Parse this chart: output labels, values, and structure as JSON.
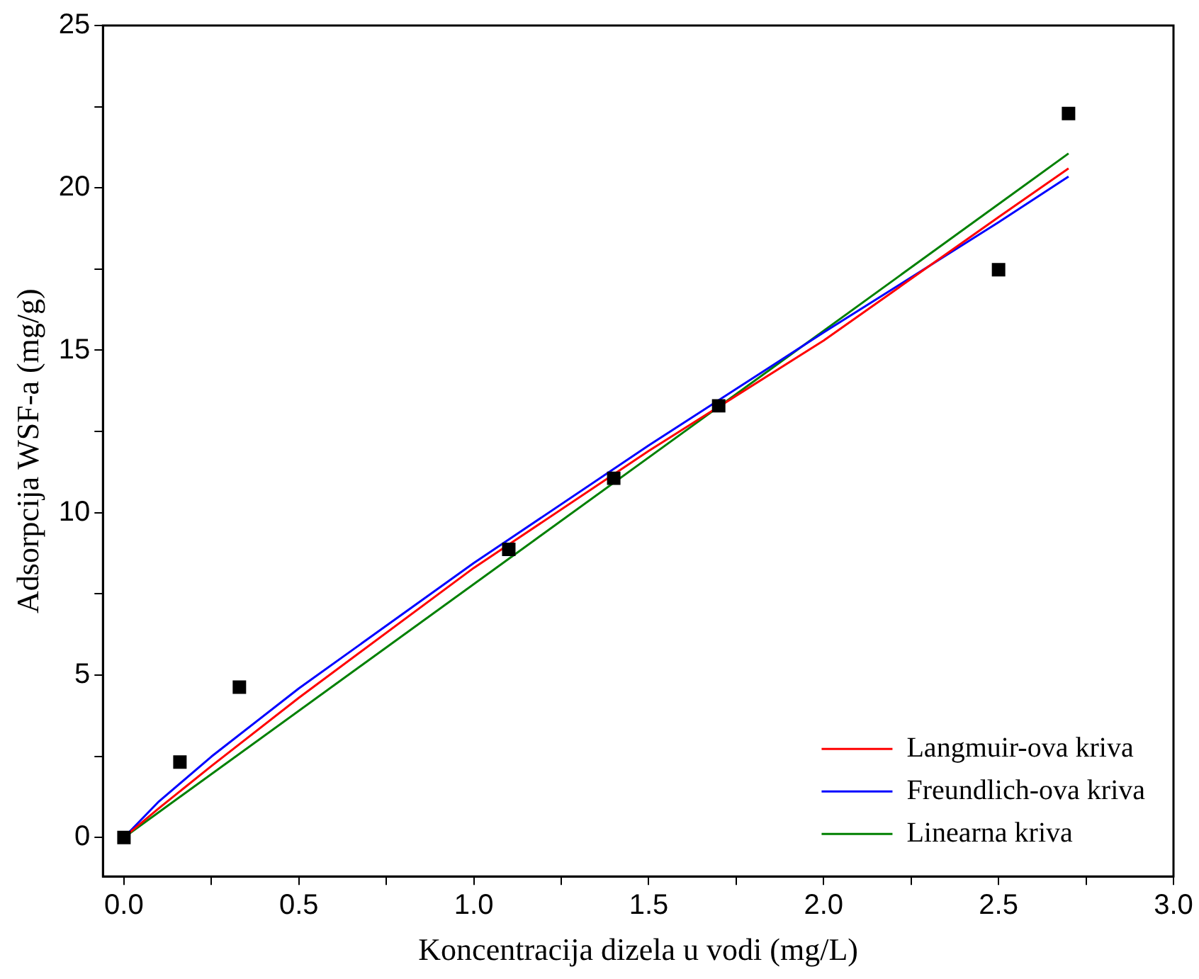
{
  "chart_data": {
    "type": "line",
    "xlabel": "Koncentracija dizela u vodi (mg/L)",
    "ylabel": "Adsorpcija WSF-a (mg/g)",
    "xlim": [
      -0.06,
      3.0
    ],
    "ylim": [
      -1.2,
      25
    ],
    "xticks": [
      {
        "value": 0,
        "label": "0.0"
      },
      {
        "value": 0.25,
        "label": null
      },
      {
        "value": 0.5,
        "label": "0.5"
      },
      {
        "value": 0.75,
        "label": null
      },
      {
        "value": 1,
        "label": "1.0"
      },
      {
        "value": 1.25,
        "label": null
      },
      {
        "value": 1.5,
        "label": "1.5"
      },
      {
        "value": 1.75,
        "label": null
      },
      {
        "value": 2,
        "label": "2.0"
      },
      {
        "value": 2.25,
        "label": null
      },
      {
        "value": 2.5,
        "label": "2.5"
      },
      {
        "value": 2.75,
        "label": null
      },
      {
        "value": 3,
        "label": "3.0"
      }
    ],
    "yticks": [
      0,
      {
        "value": 2.5,
        "label": null
      },
      5,
      {
        "value": 7.5,
        "label": null
      },
      10,
      {
        "value": 12.5,
        "label": null
      },
      15,
      {
        "value": 17.5,
        "label": null
      },
      20,
      {
        "value": 22.5,
        "label": null
      },
      25
    ],
    "grid": false,
    "legend": "bottom right",
    "series": [
      {
        "type": "scatter",
        "marker": "square",
        "color": "#000000",
        "x": [
          0,
          0.16,
          0.33,
          1.1,
          1.4,
          1.7,
          2.5,
          2.7
        ],
        "values": [
          0,
          2.32,
          4.63,
          8.87,
          11.06,
          13.29,
          17.48,
          22.29
        ]
      },
      {
        "name": "Langmuir-ova kriva",
        "color": "#ff0000",
        "x": [
          0,
          0.1,
          0.25,
          0.5,
          1,
          1.5,
          2,
          2.5,
          2.7
        ],
        "values": [
          0,
          0.9,
          2.2,
          4.3,
          8.3,
          11.9,
          15.3,
          19.1,
          20.6
        ]
      },
      {
        "name": "Freundlich-ova kriva",
        "color": "#0000ff",
        "x": [
          0,
          0.1,
          0.25,
          0.5,
          1,
          1.5,
          2,
          2.5,
          2.7
        ],
        "values": [
          0,
          1.11,
          2.49,
          4.59,
          8.45,
          12.07,
          15.55,
          18.94,
          20.35
        ]
      },
      {
        "name": "Linearna kriva",
        "color": "#008000",
        "x": [
          0,
          2.7
        ],
        "values": [
          0,
          21.06
        ]
      }
    ]
  }
}
